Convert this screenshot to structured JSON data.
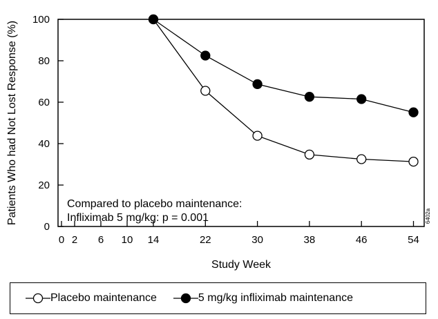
{
  "chart_data": {
    "type": "line",
    "ylabel": "Patients Who had Not Lost Response (%)",
    "xlabel": "Study Week",
    "ylim": [
      0,
      100
    ],
    "yticks": [
      0,
      20,
      40,
      60,
      80,
      100
    ],
    "xticks": [
      0,
      2,
      6,
      10,
      14,
      22,
      30,
      38,
      46,
      54
    ],
    "series": [
      {
        "name": "Placebo maintenance",
        "marker": "open-circle",
        "color": "#000000",
        "x": [
          14,
          22,
          30,
          38,
          46,
          54
        ],
        "y": [
          100,
          65.5,
          43.8,
          34.7,
          32.5,
          31.3
        ]
      },
      {
        "name": "5 mg/kg infliximab maintenance",
        "marker": "filled-circle",
        "color": "#000000",
        "x": [
          14,
          22,
          30,
          38,
          46,
          54
        ],
        "y": [
          100,
          82.5,
          68.7,
          62.6,
          61.5,
          55.1
        ]
      }
    ],
    "annotation": {
      "line1": "Compared to placebo maintenance:",
      "line2": "Infliximab 5 mg/kg:   p = 0.001"
    },
    "side_code": "6402a",
    "legend": "bottom"
  }
}
